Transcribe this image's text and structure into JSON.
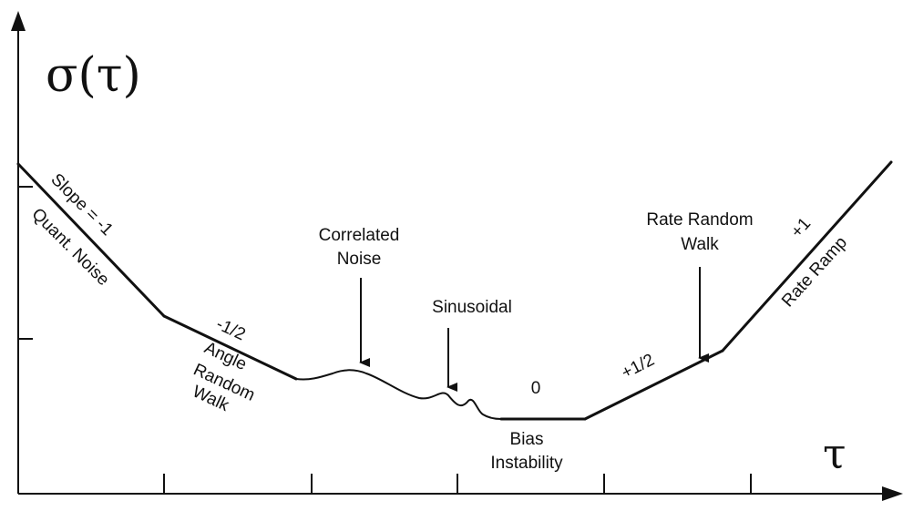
{
  "axes": {
    "y_title": "σ(τ)",
    "x_title": "τ"
  },
  "labels": {
    "slope_neg1": "Slope = -1",
    "quant_noise": "Quant. Noise",
    "slope_neg_half": "-1/2",
    "arw_line1": "Angle",
    "arw_line2": "Random",
    "arw_line3": "Walk",
    "corr_line1": "Correlated",
    "corr_line2": "Noise",
    "sinusoidal": "Sinusoidal",
    "slope_zero": "0",
    "bias_line1": "Bias",
    "bias_line2": "Instability",
    "slope_pos_half": "+1/2",
    "rrw_line1": "Rate Random",
    "rrw_line2": "Walk",
    "slope_pos1": "+1",
    "rate_ramp": "Rate Ramp"
  }
}
